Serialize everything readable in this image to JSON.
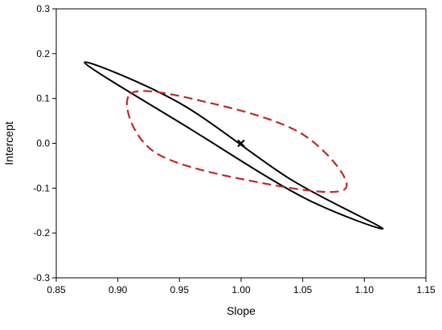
{
  "chart_data": {
    "type": "scatter",
    "title": "",
    "xlabel": "Slope",
    "ylabel": "Intercept",
    "xlim": [
      0.85,
      1.15
    ],
    "ylim": [
      -0.3,
      0.3
    ],
    "xticks": [
      "0.85",
      "0.90",
      "0.95",
      "1.00",
      "1.05",
      "1.10",
      "1.15"
    ],
    "yticks": [
      "-0.3",
      "-0.2",
      "-0.1",
      "0.0",
      "0.1",
      "0.2",
      "0.3"
    ],
    "grid": false,
    "legend": "none",
    "point": {
      "x": 1.0,
      "y": 0.0,
      "marker": "x"
    },
    "ellipses": [
      {
        "style": "solid",
        "color": "#000000",
        "outline": [
          {
            "x": 0.873,
            "y": 0.18
          },
          {
            "x": 0.95,
            "y": 0.09
          },
          {
            "x": 1.04,
            "y": -0.08
          },
          {
            "x": 1.115,
            "y": -0.19
          },
          {
            "x": 1.05,
            "y": -0.12
          },
          {
            "x": 0.96,
            "y": 0.03
          }
        ]
      },
      {
        "style": "dashed",
        "color": "#c0282a",
        "outline": [
          {
            "x": 0.91,
            "y": 0.11
          },
          {
            "x": 0.975,
            "y": 0.09
          },
          {
            "x": 1.05,
            "y": 0.02
          },
          {
            "x": 1.085,
            "y": -0.1
          },
          {
            "x": 1.02,
            "y": -0.09
          },
          {
            "x": 0.93,
            "y": -0.02
          }
        ]
      }
    ]
  }
}
